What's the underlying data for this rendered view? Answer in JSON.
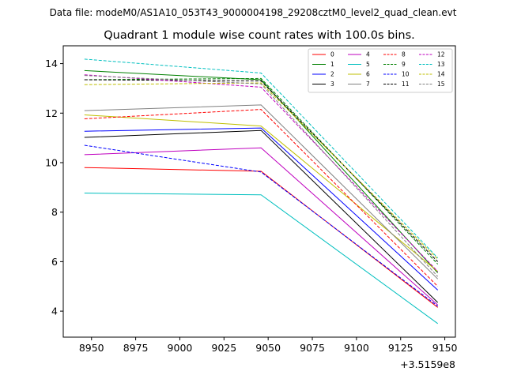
{
  "header": {
    "data_file": "Data file: modeM0/AS1A10_053T43_9000004198_29208cztM0_level2_quad_clean.evt"
  },
  "chart_data": {
    "type": "line",
    "title": "Quadrant 1 module wise count rates with 100.0s bins.",
    "xlabel": "",
    "ylabel": "",
    "x_offset_label": "+3.5159e8",
    "x": [
      8946,
      9046,
      9146
    ],
    "xlim": [
      8934,
      9156
    ],
    "ylim": [
      2.95,
      14.72
    ],
    "xticks": [
      8950,
      8975,
      9000,
      9025,
      9050,
      9075,
      9100,
      9125,
      9150
    ],
    "xtick_labels": [
      "8950",
      "8975",
      "9000",
      "9025",
      "9050",
      "9075",
      "9100",
      "9125",
      "9150"
    ],
    "yticks": [
      4,
      6,
      8,
      10,
      12,
      14
    ],
    "ytick_labels": [
      "4",
      "6",
      "8",
      "10",
      "12",
      "14"
    ],
    "legend_position": "top-right",
    "series": [
      {
        "name": "0",
        "color": "#ff0000",
        "dash": "solid",
        "values": [
          9.8,
          9.65,
          4.15
        ]
      },
      {
        "name": "1",
        "color": "#008000",
        "dash": "solid",
        "values": [
          13.72,
          13.35,
          5.55
        ]
      },
      {
        "name": "2",
        "color": "#0000ff",
        "dash": "solid",
        "values": [
          11.27,
          11.4,
          4.85
        ]
      },
      {
        "name": "3",
        "color": "#000000",
        "dash": "solid",
        "values": [
          11.02,
          11.3,
          4.35
        ]
      },
      {
        "name": "4",
        "color": "#bf00bf",
        "dash": "solid",
        "values": [
          10.32,
          10.6,
          4.25
        ]
      },
      {
        "name": "5",
        "color": "#00bfbf",
        "dash": "solid",
        "values": [
          8.77,
          8.7,
          3.5
        ]
      },
      {
        "name": "6",
        "color": "#bfbf00",
        "dash": "solid",
        "values": [
          11.93,
          11.48,
          5.6
        ]
      },
      {
        "name": "7",
        "color": "#808080",
        "dash": "solid",
        "values": [
          12.1,
          12.33,
          5.3
        ]
      },
      {
        "name": "8",
        "color": "#ff0000",
        "dash": "dashed",
        "values": [
          11.77,
          12.15,
          5.0
        ]
      },
      {
        "name": "9",
        "color": "#008000",
        "dash": "dashed",
        "values": [
          13.35,
          13.4,
          5.9
        ]
      },
      {
        "name": "10",
        "color": "#0000ff",
        "dash": "dashed",
        "values": [
          10.7,
          9.62,
          4.2
        ]
      },
      {
        "name": "11",
        "color": "#000000",
        "dash": "dashed",
        "values": [
          13.35,
          13.3,
          6.0
        ]
      },
      {
        "name": "12",
        "color": "#bf00bf",
        "dash": "dashed",
        "values": [
          13.55,
          13.05,
          5.6
        ]
      },
      {
        "name": "13",
        "color": "#00bfbf",
        "dash": "dashed",
        "values": [
          14.18,
          13.62,
          6.15
        ]
      },
      {
        "name": "14",
        "color": "#bfbf00",
        "dash": "dashed",
        "values": [
          13.15,
          13.22,
          6.1
        ]
      },
      {
        "name": "15",
        "color": "#808080",
        "dash": "dashed",
        "values": [
          13.52,
          13.18,
          5.4
        ]
      }
    ]
  }
}
